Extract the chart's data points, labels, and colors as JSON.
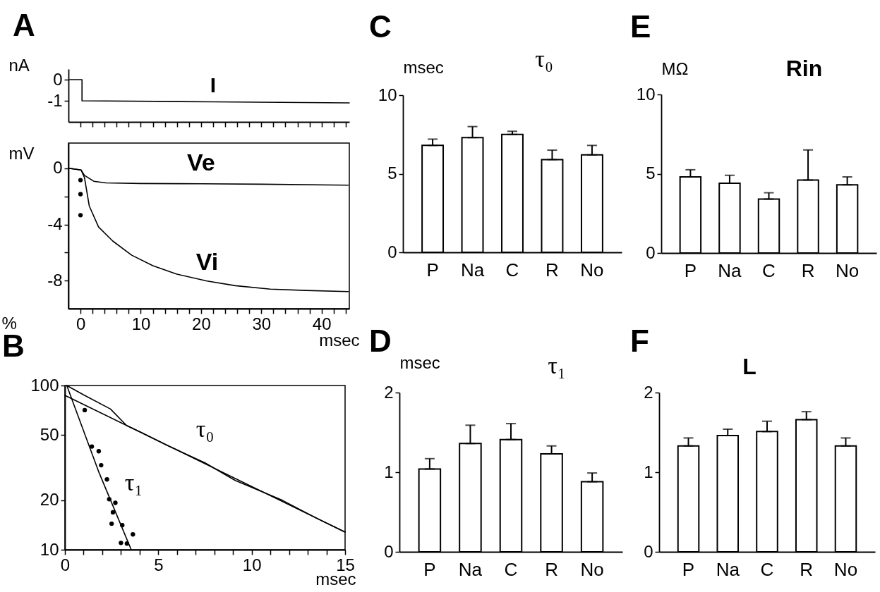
{
  "chart_data": [
    {
      "type": "line",
      "title": "A",
      "ylabel": "nA",
      "tick_labels": "y",
      "xlim": [
        -2,
        44.6
      ],
      "ylim": [
        -2,
        0.5
      ],
      "xticks": [
        0,
        {
          "value": 2,
          "label": null
        },
        {
          "value": 4,
          "label": null
        },
        {
          "value": 6,
          "label": null
        },
        {
          "value": 8,
          "label": null
        },
        10,
        {
          "value": 12,
          "label": null
        },
        {
          "value": 14,
          "label": null
        },
        {
          "value": 16,
          "label": null
        },
        {
          "value": 18,
          "label": null
        },
        20,
        {
          "value": 22,
          "label": null
        },
        {
          "value": 24,
          "label": null
        },
        {
          "value": 26,
          "label": null
        },
        {
          "value": 28,
          "label": null
        },
        30,
        {
          "value": 32,
          "label": null
        },
        {
          "value": 34,
          "label": null
        },
        {
          "value": 36,
          "label": null
        },
        {
          "value": 38,
          "label": null
        },
        40,
        {
          "value": 42,
          "label": null
        },
        {
          "value": 44,
          "label": null
        }
      ],
      "yticks": [
        -1,
        0
      ],
      "series": [
        {
          "name": "I",
          "color": "#000000",
          "x": [
            -1.8,
            0.25,
            0.25,
            22,
            44.6
          ],
          "values": [
            0,
            0,
            -1,
            -1.05,
            -1.1
          ]
        }
      ]
    },
    {
      "type": "line",
      "ylabel": "mV",
      "xlabel": "msec",
      "xlim": [
        -2,
        44.6
      ],
      "ylim": [
        -10,
        1.8
      ],
      "xticks": [
        0,
        {
          "value": 2,
          "label": null
        },
        {
          "value": 4,
          "label": null
        },
        {
          "value": 6,
          "label": null
        },
        {
          "value": 8,
          "label": null
        },
        10,
        {
          "value": 12,
          "label": null
        },
        {
          "value": 14,
          "label": null
        },
        {
          "value": 16,
          "label": null
        },
        {
          "value": 18,
          "label": null
        },
        20,
        {
          "value": 22,
          "label": null
        },
        {
          "value": 24,
          "label": null
        },
        {
          "value": 26,
          "label": null
        },
        {
          "value": 28,
          "label": null
        },
        30,
        {
          "value": 32,
          "label": null
        },
        {
          "value": 34,
          "label": null
        },
        {
          "value": 36,
          "label": null
        },
        {
          "value": 38,
          "label": null
        },
        40,
        {
          "value": 42,
          "label": null
        },
        {
          "value": 44,
          "label": null
        }
      ],
      "yticks": [
        -8,
        {
          "value": -6,
          "label": null
        },
        -4,
        {
          "value": -2,
          "label": null
        },
        0
      ],
      "series": [
        {
          "name": "Ve",
          "color": "#000000",
          "x": [
            -1.8,
            0.1,
            0.66,
            2.2,
            4.2,
            10,
            20,
            30,
            44.4
          ],
          "values": [
            0,
            -0.12,
            -0.5,
            -0.92,
            -1.04,
            -1.08,
            -1.1,
            -1.13,
            -1.2
          ]
        },
        {
          "name": "Vi",
          "color": "#000000",
          "x": [
            -1.8,
            0.1,
            0.66,
            1.45,
            3,
            5.35,
            8.5,
            12,
            15.9,
            21,
            25.7,
            31.5,
            37.4,
            44.4
          ],
          "values": [
            0,
            -0.12,
            -0.67,
            -2.68,
            -4.18,
            -5.18,
            -6.19,
            -6.94,
            -7.53,
            -8.03,
            -8.36,
            -8.61,
            -8.7,
            -8.78
          ]
        },
        {
          "type": "scatter",
          "marker": "circle",
          "color": "#000000",
          "x": [
            0,
            0,
            0
          ],
          "values": [
            -0.84,
            -1.84,
            -3.34
          ]
        }
      ]
    },
    {
      "type": "bar",
      "title": "C",
      "subtitle": "τ₀",
      "ylabel": "msec",
      "categories": [
        "P",
        "Na",
        "C",
        "R",
        "No"
      ],
      "values": [
        6.8,
        7.3,
        7.5,
        5.9,
        6.2
      ],
      "errors": [
        [
          6.8,
          7.2
        ],
        [
          7.3,
          8.0
        ],
        [
          7.5,
          7.7
        ],
        [
          5.9,
          6.5
        ],
        [
          6.2,
          6.8
        ]
      ],
      "color": "#ffffff",
      "ylim": [
        0,
        10
      ],
      "yticks": [
        0,
        5,
        10
      ]
    },
    {
      "type": "bar",
      "title": "E",
      "subtitle": "Rin",
      "ylabel": "MΩ",
      "categories": [
        "P",
        "Na",
        "C",
        "R",
        "No"
      ],
      "values": [
        4.8,
        4.4,
        3.4,
        4.6,
        4.3
      ],
      "errors": [
        [
          4.8,
          5.25
        ],
        [
          4.4,
          4.9
        ],
        [
          3.4,
          3.8
        ],
        [
          4.6,
          6.5
        ],
        [
          4.3,
          4.8
        ]
      ],
      "color": "#ffffff",
      "ylim": [
        0,
        10
      ],
      "yticks": [
        0,
        5,
        10
      ]
    },
    {
      "type": "line",
      "title": "B",
      "ylabel": "%",
      "xlabel": "msec",
      "log": "y",
      "xlim": [
        0,
        15
      ],
      "ylim": [
        10,
        100
      ],
      "xticks": [
        0,
        {
          "value": 1,
          "label": null
        },
        {
          "value": 2,
          "label": null
        },
        {
          "value": 3,
          "label": null
        },
        {
          "value": 4,
          "label": null
        },
        5,
        {
          "value": 6,
          "label": null
        },
        {
          "value": 7,
          "label": null
        },
        {
          "value": 8,
          "label": null
        },
        {
          "value": 9,
          "label": null
        },
        10,
        {
          "value": 11,
          "label": null
        },
        {
          "value": 12,
          "label": null
        },
        {
          "value": 13,
          "label": null
        },
        {
          "value": 14,
          "label": null
        },
        15
      ],
      "yticks": [
        10,
        20,
        50,
        100
      ],
      "series": [
        {
          "name": "τ₀",
          "color": "#000000",
          "x": [
            0.1,
            1,
            2.44,
            3.3,
            4.08,
            5.5,
            7.5,
            9.12,
            11.64,
            13.5,
            15
          ],
          "values": [
            100,
            87.7,
            71.9,
            57.1,
            51.8,
            43.1,
            33.8,
            26.4,
            20,
            15.5,
            12.8
          ]
        },
        {
          "color": "#000000",
          "x": [
            0,
            15
          ],
          "values": [
            87,
            12.8
          ]
        },
        {
          "name": "τ₁",
          "color": "#000000",
          "x": [
            0.1,
            1.8,
            3.55
          ],
          "values": [
            100,
            30,
            10
          ]
        },
        {
          "type": "scatter",
          "marker": "circle",
          "color": "#000000",
          "x": [
            1.06,
            1.44,
            1.81,
            1.94,
            2.25,
            2.37,
            2.7,
            2.57,
            2.5,
            3.07,
            3.64,
            3.0,
            3.32
          ],
          "values": [
            70.8,
            42.5,
            39.8,
            32.7,
            26.8,
            20.3,
            19.3,
            16.9,
            14.4,
            14.1,
            12.4,
            11.0,
            10.9
          ]
        }
      ]
    },
    {
      "type": "bar",
      "title": "D",
      "subtitle": "τ₁",
      "ylabel": "msec",
      "categories": [
        "P",
        "Na",
        "C",
        "R",
        "No"
      ],
      "values": [
        1.04,
        1.36,
        1.41,
        1.23,
        0.88
      ],
      "errors": [
        [
          1.04,
          1.17
        ],
        [
          1.36,
          1.59
        ],
        [
          1.41,
          1.61
        ],
        [
          1.23,
          1.33
        ],
        [
          0.88,
          0.99
        ]
      ],
      "color": "#ffffff",
      "ylim": [
        0,
        2
      ],
      "yticks": [
        0,
        1,
        2
      ]
    },
    {
      "type": "bar",
      "title": "F",
      "subtitle": "L",
      "categories": [
        "P",
        "Na",
        "C",
        "R",
        "No"
      ],
      "values": [
        1.33,
        1.46,
        1.51,
        1.66,
        1.33
      ],
      "errors": [
        [
          1.33,
          1.43
        ],
        [
          1.46,
          1.54
        ],
        [
          1.51,
          1.64
        ],
        [
          1.66,
          1.76
        ],
        [
          1.33,
          1.43
        ]
      ],
      "color": "#ffffff",
      "ylim": [
        0,
        2
      ],
      "yticks": [
        0,
        1,
        2
      ]
    }
  ]
}
